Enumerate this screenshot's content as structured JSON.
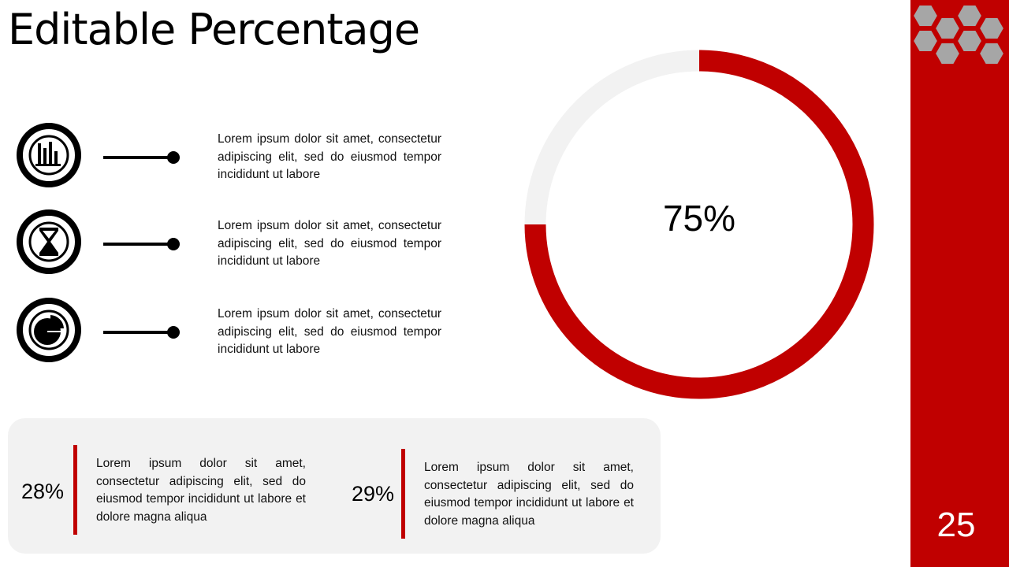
{
  "header": {
    "title": "Editable Percentage"
  },
  "items": [
    {
      "text": "Lorem ipsum dolor sit amet, consectetur adipiscing elit, sed do eiusmod tempor incididunt ut labore"
    },
    {
      "text": "Lorem ipsum dolor sit amet, consectetur adipiscing elit, sed do eiusmod tempor incididunt ut labore"
    },
    {
      "text": "Lorem ipsum dolor sit amet, consectetur adipiscing elit, sed do eiusmod tempor incididunt ut labore"
    }
  ],
  "donut": {
    "value": 75,
    "label": "75%"
  },
  "stats": [
    {
      "value": "28%",
      "text": "Lorem ipsum dolor sit amet, consectetur adipiscing elit, sed do eiusmod tempor incididunt ut labore et dolore magna aliqua"
    },
    {
      "value": "29%",
      "text": "Lorem ipsum dolor sit amet, consectetur adipiscing elit, sed do eiusmod tempor incididunt ut labore et dolore magna aliqua"
    }
  ],
  "page_number": "25"
}
